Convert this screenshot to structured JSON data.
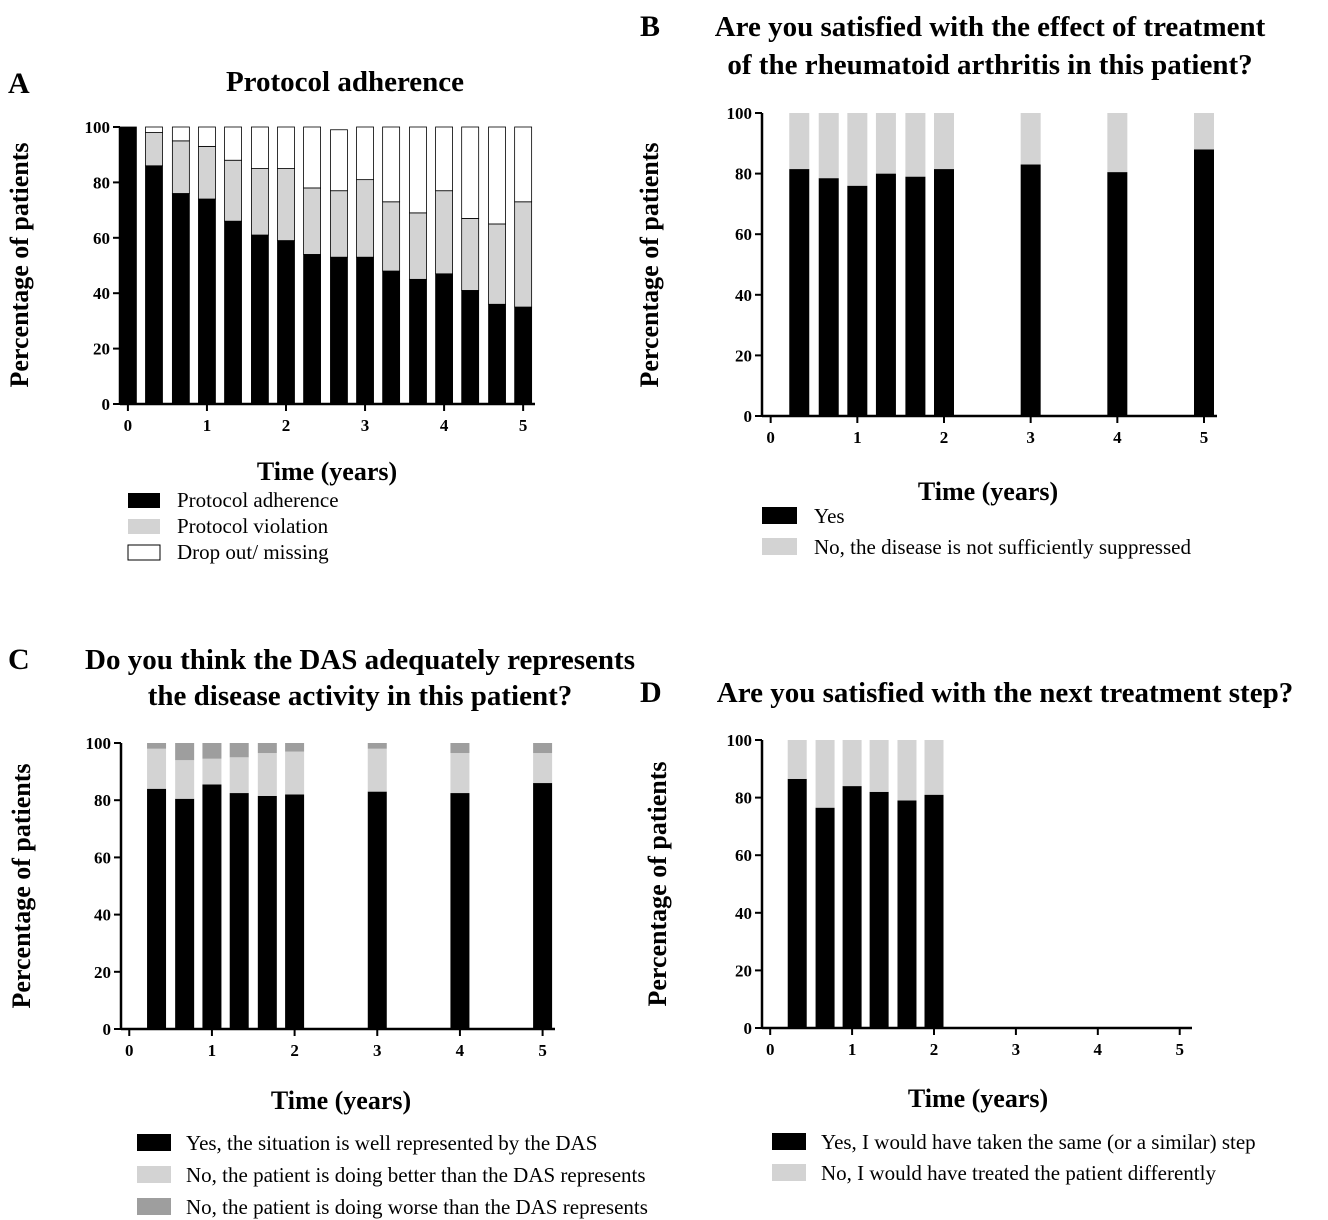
{
  "colors": {
    "black": "#000000",
    "light_gray": "#d3d3d3",
    "mid_gray": "#9e9e9e",
    "white": "#ffffff"
  },
  "chart_data": [
    {
      "panel": "A",
      "type": "bar",
      "stacked": true,
      "title": "Protocol adherence",
      "xlabel": "Time (years)",
      "ylabel": "Percentage of patients",
      "ylim": [
        0,
        100
      ],
      "yticks": [
        0,
        20,
        40,
        60,
        80,
        100
      ],
      "xlim": [
        -0.1,
        5.15
      ],
      "xticks": [
        0,
        1,
        2,
        3,
        4,
        5
      ],
      "x": [
        0,
        0.33,
        0.67,
        1,
        1.33,
        1.67,
        2,
        2.33,
        2.67,
        3,
        3.33,
        3.67,
        4,
        4.33,
        4.67,
        5
      ],
      "series": [
        {
          "name": "Protocol adherence",
          "color": "#000000",
          "values": [
            100,
            86,
            76,
            74,
            66,
            61,
            59,
            54,
            53,
            53,
            48,
            45,
            47,
            41,
            36,
            35
          ]
        },
        {
          "name": "Protocol violation",
          "color": "#d3d3d3",
          "values": [
            0,
            12,
            19,
            19,
            22,
            24,
            26,
            24,
            24,
            28,
            25,
            24,
            30,
            26,
            29,
            38
          ]
        },
        {
          "name": "Drop out/ missing",
          "color": "#ffffff",
          "values": [
            0,
            2,
            5,
            7,
            12,
            15,
            15,
            22,
            22,
            19,
            27,
            31,
            23,
            33,
            35,
            27
          ]
        }
      ],
      "legend_position": "bottom"
    },
    {
      "panel": "B",
      "type": "bar",
      "stacked": true,
      "title": "Are you satisfied with the effect of treatment of the rheumatoid arthritis in this patient?",
      "title_lines": [
        "Are you satisfied with the effect of treatment",
        "of the rheumatoid arthritis in this patient?"
      ],
      "xlabel": "Time (years)",
      "ylabel": "Percentage of patients",
      "ylim": [
        0,
        100
      ],
      "yticks": [
        0,
        20,
        40,
        60,
        80,
        100
      ],
      "xlim": [
        -0.1,
        5.15
      ],
      "xticks": [
        0,
        1,
        2,
        3,
        4,
        5
      ],
      "x": [
        0.33,
        0.67,
        1,
        1.33,
        1.67,
        2,
        3,
        4,
        5
      ],
      "series": [
        {
          "name": "Yes",
          "color": "#000000",
          "values": [
            81.5,
            78.5,
            76,
            80,
            79,
            81.5,
            83,
            80.5,
            88
          ]
        },
        {
          "name": "No, the disease is not sufficiently suppressed",
          "color": "#d3d3d3",
          "values": [
            18.5,
            21.5,
            24,
            20,
            21,
            18.5,
            17,
            19.5,
            12
          ]
        }
      ],
      "legend_position": "bottom"
    },
    {
      "panel": "C",
      "type": "bar",
      "stacked": true,
      "title": "Do you think the DAS adequately represents the disease activity in this patient?",
      "title_lines": [
        "Do you think the DAS adequately represents",
        "the disease activity in this patient?"
      ],
      "xlabel": "Time (years)",
      "ylabel": "Percentage of patients",
      "ylim": [
        0,
        100
      ],
      "yticks": [
        0,
        20,
        40,
        60,
        80,
        100
      ],
      "xlim": [
        -0.1,
        5.15
      ],
      "xticks": [
        0,
        1,
        2,
        3,
        4,
        5
      ],
      "x": [
        0.33,
        0.67,
        1,
        1.33,
        1.67,
        2,
        3,
        4,
        5
      ],
      "series": [
        {
          "name": "Yes, the situation is well represented by the DAS",
          "color": "#000000",
          "values": [
            84,
            80.5,
            85.5,
            82.5,
            81.5,
            82,
            83,
            82.5,
            86
          ]
        },
        {
          "name": "No, the patient is doing better than the DAS represents",
          "color": "#d3d3d3",
          "values": [
            14,
            13.5,
            9,
            12.5,
            15,
            15,
            15,
            14,
            10.5
          ]
        },
        {
          "name": "No, the patient is doing worse than the DAS represents",
          "color": "#9e9e9e",
          "values": [
            2,
            6,
            5.5,
            5,
            3.5,
            3,
            2,
            3.5,
            3.5
          ]
        }
      ],
      "legend_position": "bottom"
    },
    {
      "panel": "D",
      "type": "bar",
      "stacked": true,
      "title": "Are you satisfied with the next treatment step?",
      "xlabel": "Time (years)",
      "ylabel": "Percentage of patients",
      "ylim": [
        0,
        100
      ],
      "yticks": [
        0,
        20,
        40,
        60,
        80,
        100
      ],
      "xlim": [
        -0.1,
        5.15
      ],
      "xticks": [
        0,
        1,
        2,
        3,
        4,
        5
      ],
      "x": [
        0.33,
        0.67,
        1,
        1.33,
        1.67,
        2
      ],
      "series": [
        {
          "name": "Yes, I would have taken the same (or a similar) step",
          "color": "#000000",
          "values": [
            86.5,
            76.5,
            84,
            82,
            79,
            81
          ]
        },
        {
          "name": "No, I would have treated the patient differently",
          "color": "#d3d3d3",
          "values": [
            13.5,
            23.5,
            16,
            18,
            21,
            19
          ]
        }
      ],
      "legend_position": "bottom"
    }
  ]
}
